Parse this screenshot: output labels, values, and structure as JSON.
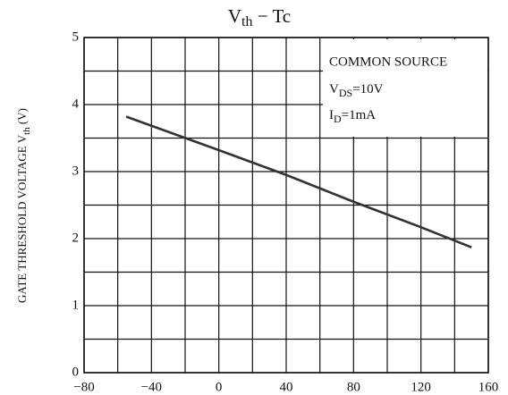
{
  "chart_data": {
    "type": "line",
    "title": {
      "main": "V",
      "sub": "th",
      "rest": " − Tc"
    },
    "y_label": {
      "main": "GATE THRESHOLD VOLTAGE  V",
      "sub": "th",
      "rest": "  (V)"
    },
    "annotations": [
      {
        "main": "COMMON SOURCE"
      },
      {
        "main": "V",
        "sub": "DS",
        "rest": "=10V"
      },
      {
        "main": "I",
        "sub": "D",
        "rest": "=1mA"
      }
    ],
    "x": [
      -55,
      0,
      40,
      80,
      120,
      150
    ],
    "series": [
      {
        "color": "#333333",
        "values": [
          3.82,
          3.32,
          2.95,
          2.55,
          2.17,
          1.87
        ]
      }
    ],
    "xlim": [
      -80,
      160
    ],
    "xticks": [
      {
        "value": -80,
        "label": "−80"
      },
      {
        "value": -40,
        "label": "−40"
      },
      0,
      40,
      80,
      120,
      160
    ],
    "ylim": [
      0,
      5
    ],
    "yticks": [
      0,
      1,
      2,
      3,
      4,
      5
    ],
    "grid": true
  }
}
